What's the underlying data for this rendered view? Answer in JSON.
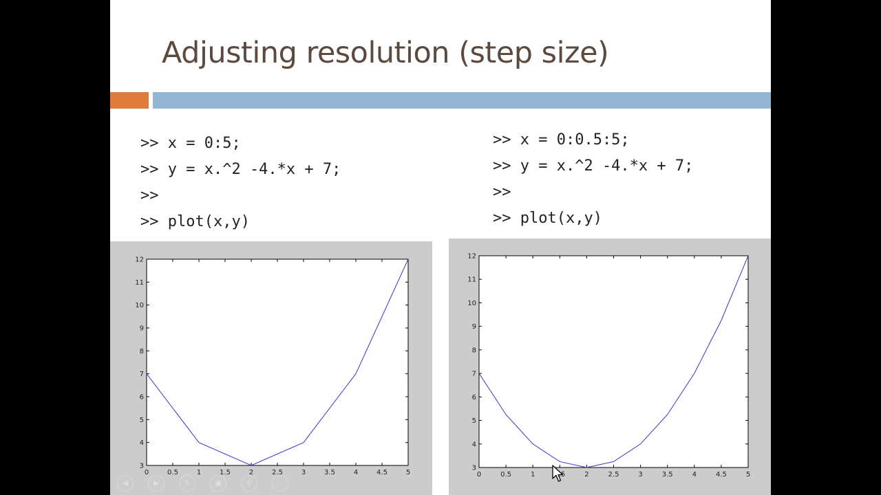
{
  "slide": {
    "title": "Adjusting resolution (step size)",
    "accent_colors": {
      "orange": "#e07b3c",
      "blue": "#94b6d2"
    }
  },
  "code_left": {
    "lines": [
      ">> x = 0:5;",
      ">> y = x.^2 -4.*x + 7;",
      ">>",
      ">> plot(x,y)"
    ]
  },
  "code_right": {
    "lines": [
      ">> x = 0:0.5:5;",
      ">> y = x.^2 -4.*x + 7;",
      ">>",
      ">> plot(x,y)"
    ]
  },
  "toolbar_icons": [
    "previous-icon",
    "next-icon",
    "pen-icon",
    "slides-icon",
    "zoom-icon",
    "more-icon"
  ],
  "chart_data": [
    {
      "type": "line",
      "x": [
        0,
        1,
        2,
        3,
        4,
        5
      ],
      "series": [
        {
          "values": [
            7,
            4,
            3,
            4,
            7,
            12
          ],
          "color": "#3333cc"
        }
      ],
      "xlim": [
        0,
        5
      ],
      "ylim": [
        3,
        12
      ],
      "xticks": [
        "0",
        "0.5",
        "1",
        "1.5",
        "2",
        "2.5",
        "3",
        "3.5",
        "4",
        "4.5",
        "5"
      ],
      "yticks": [
        "3",
        "4",
        "5",
        "6",
        "7",
        "8",
        "9",
        "10",
        "11",
        "12"
      ],
      "title": "",
      "xlabel": "",
      "ylabel": "",
      "grid": false
    },
    {
      "type": "line",
      "x": [
        0,
        0.5,
        1,
        1.5,
        2,
        2.5,
        3,
        3.5,
        4,
        4.5,
        5
      ],
      "series": [
        {
          "values": [
            7,
            5.25,
            4,
            3.25,
            3,
            3.25,
            4,
            5.25,
            7,
            9.25,
            12
          ],
          "color": "#3333cc"
        }
      ],
      "xlim": [
        0,
        5
      ],
      "ylim": [
        3,
        12
      ],
      "xticks": [
        "0",
        "0.5",
        "1",
        "1.5",
        "2",
        "2.5",
        "3",
        "3.5",
        "4",
        "4.5",
        "5"
      ],
      "yticks": [
        "3",
        "4",
        "5",
        "6",
        "7",
        "8",
        "9",
        "10",
        "11",
        "12"
      ],
      "title": "",
      "xlabel": "",
      "ylabel": "",
      "grid": false
    }
  ]
}
